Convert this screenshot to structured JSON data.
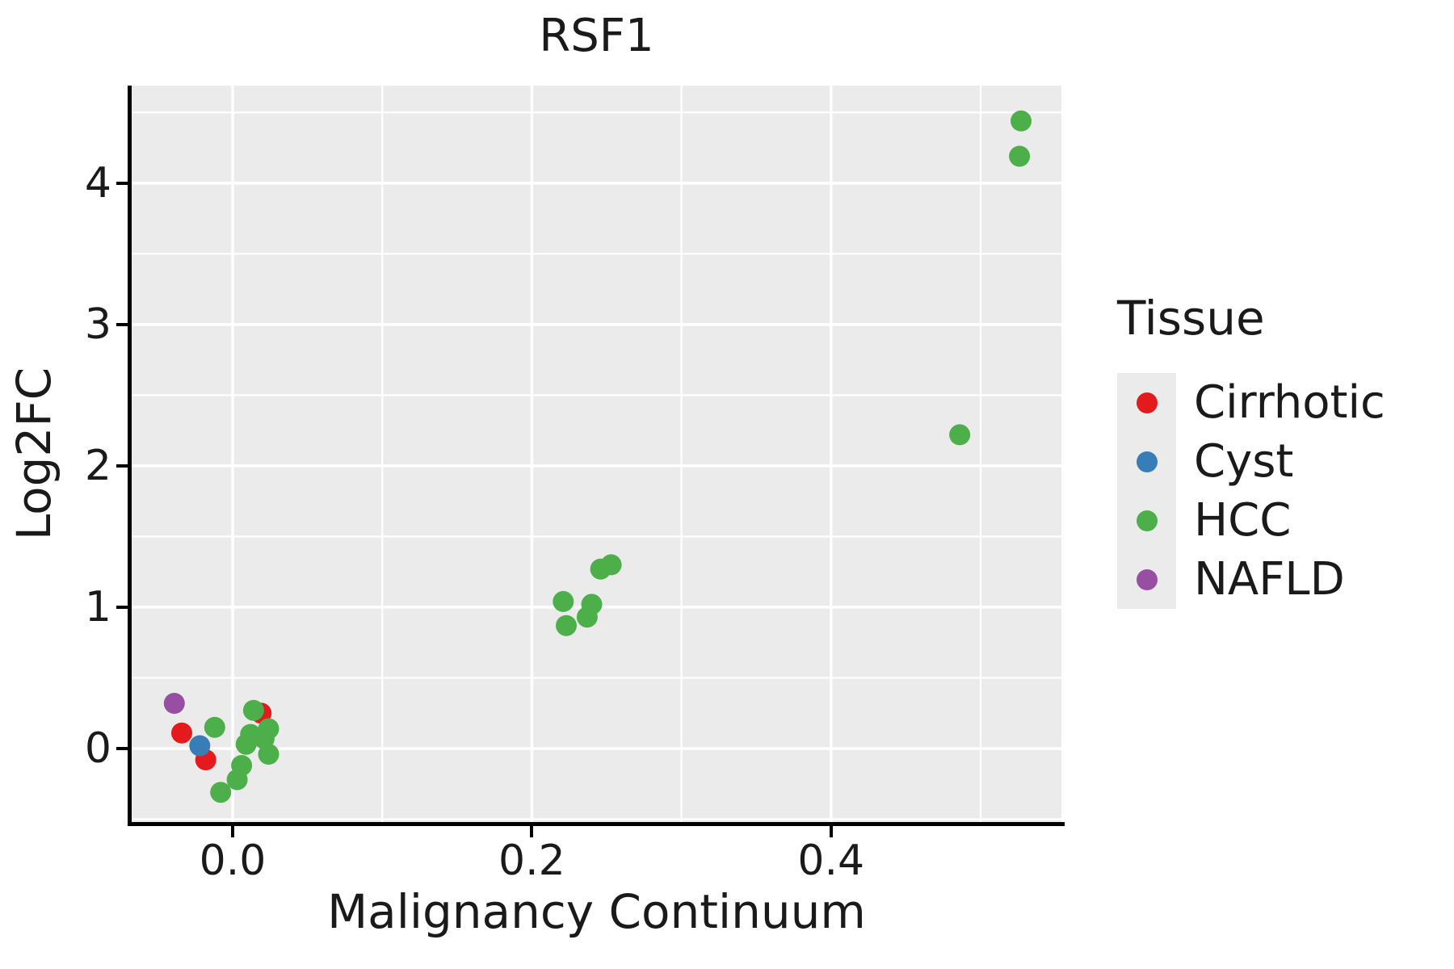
{
  "title": "RSF1",
  "panel_background": "#EBEBEB",
  "grid_color": "#FFFFFF",
  "x_axis": {
    "label": "Malignancy Continuum",
    "major_ticks": [
      0.0,
      0.2,
      0.4
    ],
    "tick_labels": [
      "0.0",
      "0.2",
      "0.4"
    ],
    "minor_ticks": [
      0.1,
      0.3,
      0.5
    ]
  },
  "y_axis": {
    "label": "Log2FC",
    "major_ticks": [
      0,
      1,
      2,
      3,
      4
    ],
    "tick_labels": [
      "0",
      "1",
      "2",
      "3",
      "4"
    ],
    "minor_ticks": [
      -0.5,
      0.5,
      1.5,
      2.5,
      3.5,
      4.5
    ]
  },
  "legend": {
    "title": "Tissue",
    "items": [
      {
        "label": "Cirrhotic",
        "color": "#E41A1C"
      },
      {
        "label": "Cyst",
        "color": "#377EB8"
      },
      {
        "label": "HCC",
        "color": "#4DAF4A"
      },
      {
        "label": "NAFLD",
        "color": "#984EA3"
      }
    ]
  },
  "chart_data": {
    "type": "scatter",
    "title": "RSF1",
    "xlabel": "Malignancy Continuum",
    "ylabel": "Log2FC",
    "xlim": [
      -0.0675,
      0.554
    ],
    "ylim": [
      -0.52,
      4.69
    ],
    "grid": true,
    "legend_position": "right",
    "point_radius_px": 13,
    "series": [
      {
        "name": "Cirrhotic",
        "color": "#E41A1C",
        "points": [
          [
            -0.034,
            0.11
          ],
          [
            -0.018,
            -0.08
          ],
          [
            0.019,
            0.25
          ]
        ]
      },
      {
        "name": "Cyst",
        "color": "#377EB8",
        "points": [
          [
            -0.022,
            0.02
          ]
        ]
      },
      {
        "name": "HCC",
        "color": "#4DAF4A",
        "points": [
          [
            -0.012,
            0.15
          ],
          [
            -0.008,
            -0.31
          ],
          [
            0.003,
            -0.22
          ],
          [
            0.006,
            -0.12
          ],
          [
            0.009,
            0.03
          ],
          [
            0.012,
            0.1
          ],
          [
            0.014,
            0.27
          ],
          [
            0.021,
            0.07
          ],
          [
            0.024,
            0.14
          ],
          [
            0.024,
            -0.04
          ],
          [
            0.221,
            1.04
          ],
          [
            0.223,
            0.87
          ],
          [
            0.237,
            0.93
          ],
          [
            0.24,
            1.02
          ],
          [
            0.246,
            1.27
          ],
          [
            0.253,
            1.3
          ],
          [
            0.486,
            2.22
          ],
          [
            0.526,
            4.19
          ],
          [
            0.527,
            4.44
          ]
        ]
      },
      {
        "name": "NAFLD",
        "color": "#984EA3",
        "points": [
          [
            -0.039,
            0.32
          ]
        ]
      }
    ]
  }
}
